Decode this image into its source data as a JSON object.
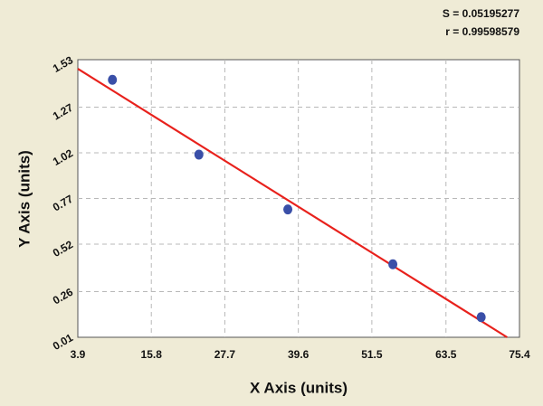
{
  "chart_data": {
    "type": "scatter",
    "annotations": [
      "S = 0.05195277",
      "r = 0.99598579"
    ],
    "x_label": "X Axis (units)",
    "y_label": "Y Axis (units)",
    "x": [
      9.5,
      23.5,
      37.9,
      54.9,
      69.2
    ],
    "values": [
      1.42,
      1.01,
      0.71,
      0.41,
      0.12
    ],
    "color": "#3a4fa8",
    "fit_line": {
      "x": [
        3.9,
        73.4
      ],
      "values": [
        1.48,
        0.01
      ],
      "color": "#e8211c"
    },
    "xlim": [
      3.9,
      75.4
    ],
    "xticks": [
      3.9,
      15.8,
      27.7,
      39.6,
      51.5,
      63.5,
      75.4
    ],
    "ylim": [
      0.01,
      1.53
    ],
    "yticks": [
      0.01,
      0.26,
      0.52,
      0.77,
      1.02,
      1.27,
      1.53
    ],
    "grid": true
  }
}
